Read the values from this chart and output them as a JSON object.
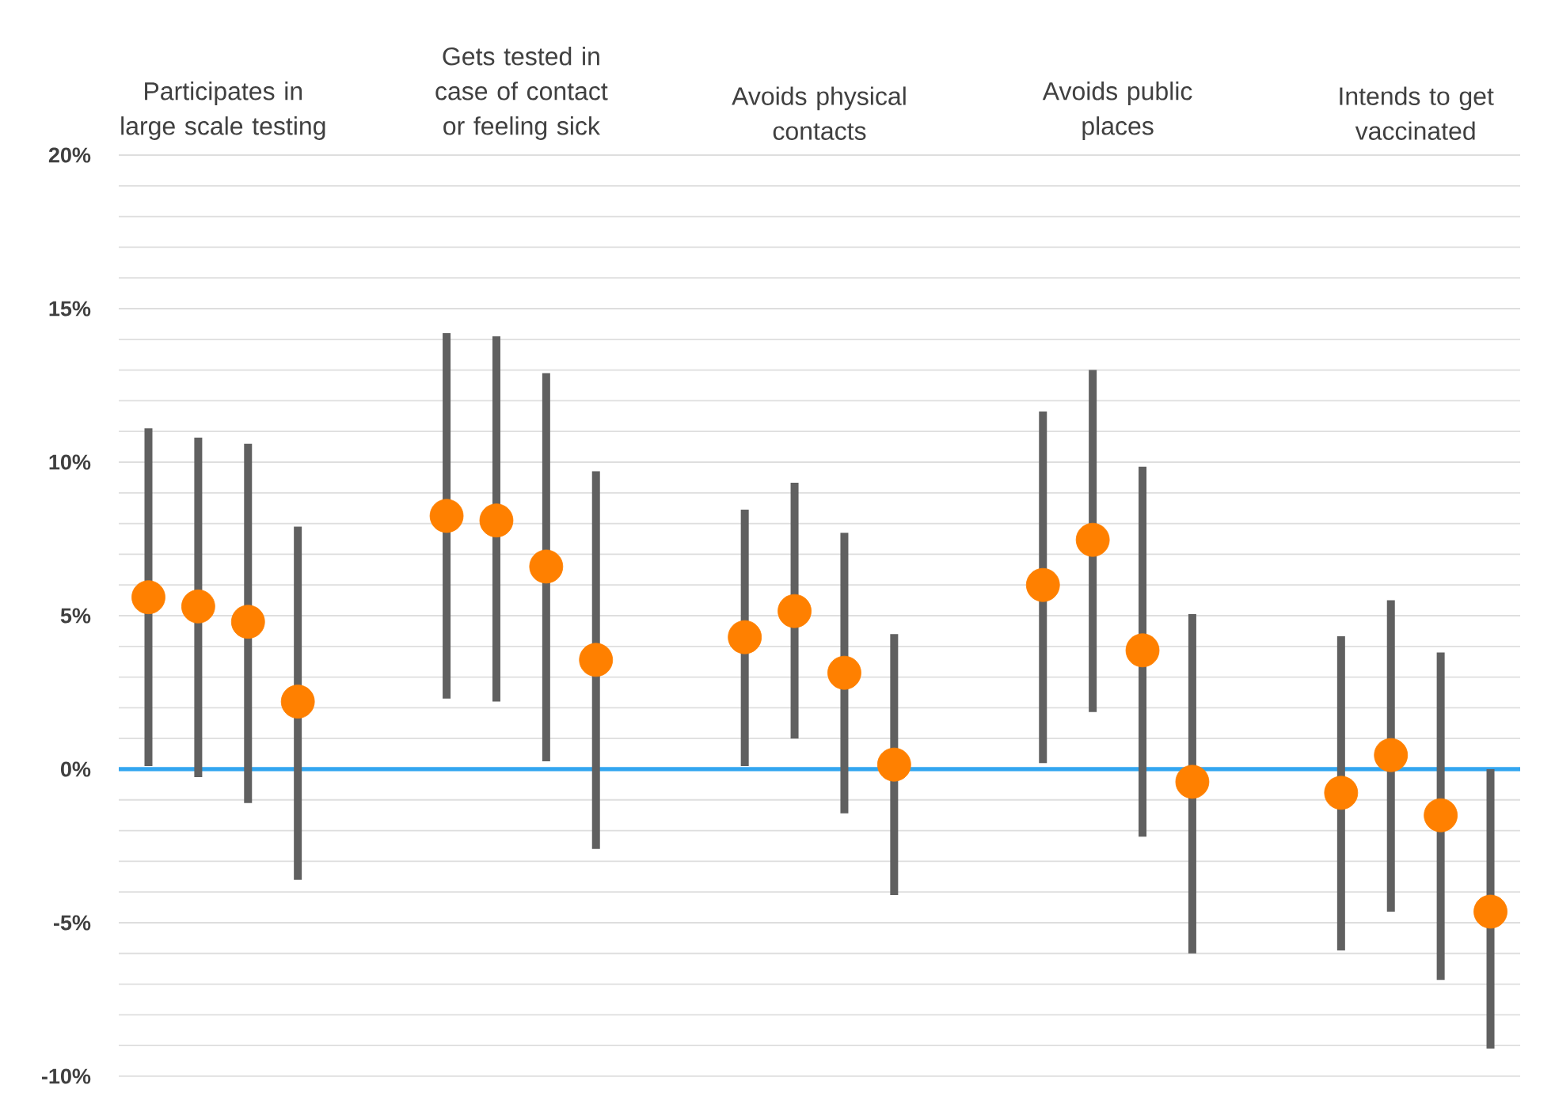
{
  "chart_data": {
    "type": "scatter",
    "categories": [
      "Participates in large scale testing",
      "Gets tested in case of contact or feeling sick",
      "Avoids physical contacts",
      "Avoids public places",
      "Intends to get vaccinated"
    ],
    "series": [
      {
        "color": "#ff8000",
        "values": [
          5.6,
          8.25,
          4.3,
          6.0,
          -0.77
        ],
        "errors": [
          [
            0.1,
            11.1
          ],
          [
            2.3,
            14.2
          ],
          [
            0.1,
            8.45
          ],
          [
            0.2,
            11.65
          ],
          [
            -5.9,
            4.33
          ]
        ]
      },
      {
        "color": "#ff8000",
        "values": [
          5.3,
          8.1,
          5.15,
          7.47,
          0.46
        ],
        "errors": [
          [
            -0.26,
            10.8
          ],
          [
            2.2,
            14.1
          ],
          [
            1.0,
            9.33
          ],
          [
            1.86,
            13.0
          ],
          [
            -4.64,
            5.5
          ]
        ]
      },
      {
        "color": "#ff8000",
        "values": [
          4.8,
          6.6,
          3.14,
          3.87,
          -1.5
        ],
        "errors": [
          [
            -1.1,
            10.6
          ],
          [
            0.26,
            12.9
          ],
          [
            -1.44,
            7.7
          ],
          [
            -2.2,
            9.85
          ],
          [
            -6.86,
            3.8
          ]
        ]
      },
      {
        "color": "#ff8000",
        "values": [
          2.2,
          3.56,
          0.15,
          -0.41,
          -4.64
        ],
        "errors": [
          [
            -3.6,
            7.9
          ],
          [
            -2.6,
            9.7
          ],
          [
            -4.1,
            4.4
          ],
          [
            -6.0,
            5.05
          ],
          [
            -9.1,
            0.0
          ]
        ]
      }
    ],
    "ylim": [
      -10,
      20
    ],
    "yticks": [
      {
        "value": -10,
        "label": "-10%"
      },
      {
        "value": -9,
        "label": null
      },
      {
        "value": -8,
        "label": null
      },
      {
        "value": -7,
        "label": null
      },
      {
        "value": -6,
        "label": null
      },
      {
        "value": -5,
        "label": "-5%"
      },
      {
        "value": -4,
        "label": null
      },
      {
        "value": -3,
        "label": null
      },
      {
        "value": -2,
        "label": null
      },
      {
        "value": -1,
        "label": null
      },
      {
        "value": 0,
        "label": "0%"
      },
      {
        "value": 1,
        "label": null
      },
      {
        "value": 2,
        "label": null
      },
      {
        "value": 3,
        "label": null
      },
      {
        "value": 4,
        "label": null
      },
      {
        "value": 5,
        "label": "5%"
      },
      {
        "value": 6,
        "label": null
      },
      {
        "value": 7,
        "label": null
      },
      {
        "value": 8,
        "label": null
      },
      {
        "value": 9,
        "label": null
      },
      {
        "value": 10,
        "label": "10%"
      },
      {
        "value": 11,
        "label": null
      },
      {
        "value": 12,
        "label": null
      },
      {
        "value": 13,
        "label": null
      },
      {
        "value": 14,
        "label": null
      },
      {
        "value": 15,
        "label": "15%"
      },
      {
        "value": 16,
        "label": null
      },
      {
        "value": 17,
        "label": null
      },
      {
        "value": 18,
        "label": null
      },
      {
        "value": 19,
        "label": null
      },
      {
        "value": 20,
        "label": "20%"
      }
    ],
    "ref_lines": [
      {
        "axis": "y",
        "value": 0,
        "color": "#33a6f0"
      }
    ],
    "grid": "y"
  }
}
